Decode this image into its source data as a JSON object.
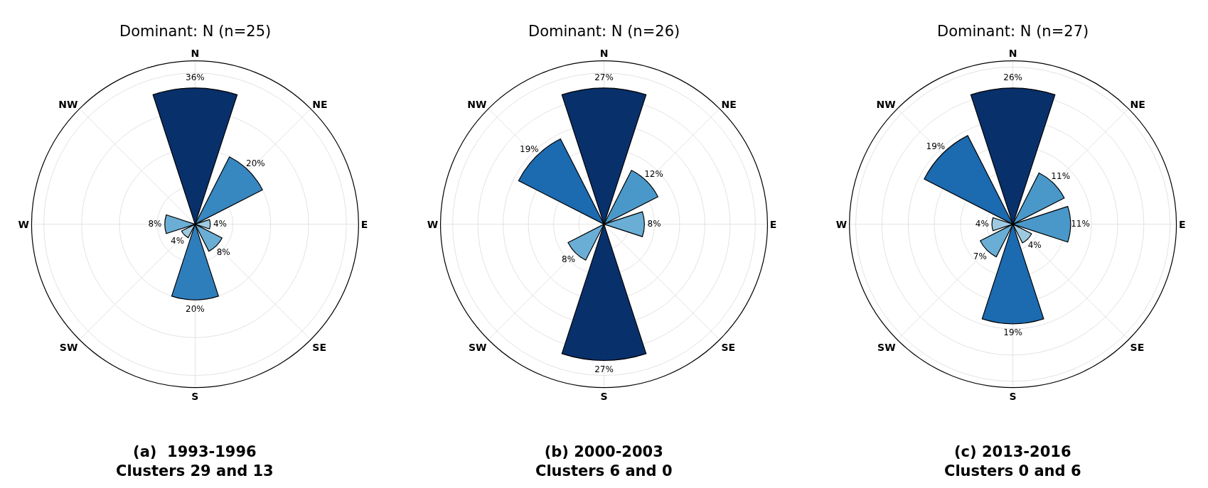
{
  "chart_data": [
    {
      "type": "other",
      "title": "Dominant: N (n=25)",
      "xlabel": "(a)  1993-1996\nClusters 29 and 13",
      "categories": [
        "N",
        "NE",
        "E",
        "SE",
        "S",
        "SW",
        "W",
        "NW"
      ],
      "values": [
        36,
        20,
        4,
        8,
        20,
        4,
        8,
        null
      ],
      "value_labels": [
        "36%",
        "20%",
        "4%",
        "8%",
        "20%",
        "4%",
        "8%",
        null
      ],
      "colors": [
        "#08306b",
        "#3787c0",
        "#9ecae1",
        "#6aaed6",
        "#2f7ebc",
        "#9ecae1",
        "#6aaed6",
        "#c6dbef"
      ]
    },
    {
      "type": "other",
      "title": "Dominant: N (n=26)",
      "xlabel": "(b) 2000-2003\nClusters 6 and 0",
      "categories": [
        "N",
        "NE",
        "E",
        "SE",
        "S",
        "SW",
        "W",
        "NW"
      ],
      "values": [
        27,
        12,
        8,
        null,
        27,
        8,
        null,
        19
      ],
      "value_labels": [
        "27%",
        "12%",
        "8%",
        null,
        "27%",
        "8%",
        null,
        "19%"
      ],
      "colors": [
        "#08306b",
        "#4a98c9",
        "#6aaed6",
        "#c6dbef",
        "#08306b",
        "#6aaed6",
        "#c6dbef",
        "#1c6ab0"
      ]
    },
    {
      "type": "other",
      "title": "Dominant: N (n=27)",
      "xlabel": "(c) 2013-2016\nClusters 0 and 6",
      "categories": [
        "N",
        "NE",
        "E",
        "SE",
        "S",
        "SW",
        "W",
        "NW"
      ],
      "values": [
        26,
        11,
        11,
        4,
        19,
        7,
        4,
        19
      ],
      "value_labels": [
        "26%",
        "11%",
        "11%",
        "4%",
        "19%",
        "7%",
        "4%",
        "19%"
      ],
      "colors": [
        "#08306b",
        "#4a98c9",
        "#4a98c9",
        "#9ecae1",
        "#1c6ab0",
        "#6aaed6",
        "#9ecae1",
        "#1c6ab0"
      ]
    }
  ]
}
